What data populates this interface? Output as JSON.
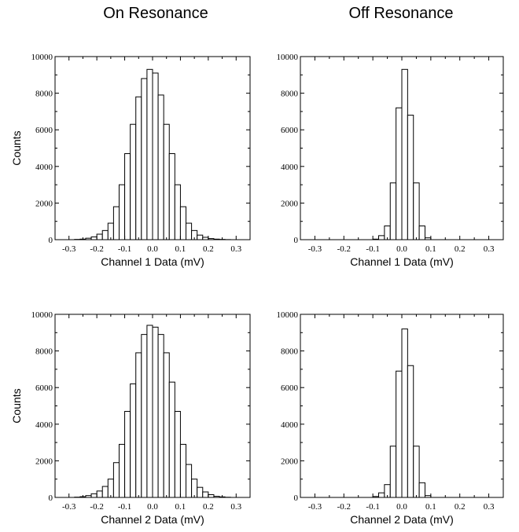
{
  "column_titles": [
    "On Resonance",
    "Off Resonance"
  ],
  "chart_data": [
    {
      "type": "bar",
      "column": "On Resonance",
      "xlabel": "Channel 1 Data (mV)",
      "ylabel": "Counts",
      "xlim": [
        -0.35,
        0.35
      ],
      "ylim": [
        0,
        10000
      ],
      "xticks": [
        -0.3,
        -0.2,
        -0.1,
        0,
        0.1,
        0.2,
        0.3
      ],
      "xtick_labels": [
        "-0.3",
        "-0.2",
        "-0.1",
        "0.0",
        "0.1",
        "0.2",
        "0.3"
      ],
      "yticks": [
        0,
        2000,
        4000,
        6000,
        8000,
        10000
      ],
      "ytick_labels": [
        "0",
        "2000",
        "4000",
        "6000",
        "8000",
        "10000"
      ],
      "bin_width": 0.02,
      "bin_centers": [
        -0.27,
        -0.25,
        -0.23,
        -0.21,
        -0.19,
        -0.17,
        -0.15,
        -0.13,
        -0.11,
        -0.09,
        -0.07,
        -0.05,
        -0.03,
        -0.01,
        0.01,
        0.03,
        0.05,
        0.07,
        0.09,
        0.11,
        0.13,
        0.15,
        0.17,
        0.19,
        0.21,
        0.23,
        0.25,
        0.27
      ],
      "values": [
        15,
        30,
        80,
        150,
        300,
        500,
        900,
        1800,
        3000,
        4700,
        6300,
        7800,
        8800,
        9300,
        9100,
        7900,
        6300,
        4700,
        3000,
        1800,
        900,
        500,
        250,
        130,
        60,
        30,
        15,
        5
      ]
    },
    {
      "type": "bar",
      "column": "Off Resonance",
      "xlabel": "Channel 1 Data (mV)",
      "ylabel": "",
      "xlim": [
        -0.35,
        0.35
      ],
      "ylim": [
        0,
        10000
      ],
      "xticks": [
        -0.3,
        -0.2,
        -0.1,
        0,
        0.1,
        0.2,
        0.3
      ],
      "xtick_labels": [
        "-0.3",
        "-0.2",
        "-0.1",
        "0.0",
        "0.1",
        "0.2",
        "0.3"
      ],
      "yticks": [
        0,
        2000,
        4000,
        6000,
        8000,
        10000
      ],
      "ytick_labels": [
        "0",
        "2000",
        "4000",
        "6000",
        "8000",
        "10000"
      ],
      "bin_width": 0.02,
      "bin_centers": [
        -0.09,
        -0.07,
        -0.05,
        -0.03,
        -0.01,
        0.01,
        0.03,
        0.05,
        0.07,
        0.09
      ],
      "values": [
        30,
        220,
        750,
        3100,
        7200,
        9300,
        6800,
        3100,
        750,
        100
      ]
    },
    {
      "type": "bar",
      "column": "On Resonance",
      "xlabel": "Channel 2 Data (mV)",
      "ylabel": "Counts",
      "xlim": [
        -0.35,
        0.35
      ],
      "ylim": [
        0,
        10000
      ],
      "xticks": [
        -0.3,
        -0.2,
        -0.1,
        0,
        0.1,
        0.2,
        0.3
      ],
      "xtick_labels": [
        "-0.3",
        "-0.2",
        "-0.1",
        "0.0",
        "0.1",
        "0.2",
        "0.3"
      ],
      "yticks": [
        0,
        2000,
        4000,
        6000,
        8000,
        10000
      ],
      "ytick_labels": [
        "0",
        "2000",
        "4000",
        "6000",
        "8000",
        "10000"
      ],
      "bin_width": 0.02,
      "bin_centers": [
        -0.27,
        -0.25,
        -0.23,
        -0.21,
        -0.19,
        -0.17,
        -0.15,
        -0.13,
        -0.11,
        -0.09,
        -0.07,
        -0.05,
        -0.03,
        -0.01,
        0.01,
        0.03,
        0.05,
        0.07,
        0.09,
        0.11,
        0.13,
        0.15,
        0.17,
        0.19,
        0.21,
        0.23,
        0.25,
        0.27
      ],
      "values": [
        15,
        40,
        100,
        200,
        350,
        600,
        1000,
        1900,
        2900,
        4700,
        6200,
        7900,
        8900,
        9400,
        9300,
        8900,
        7900,
        6300,
        4700,
        2900,
        1800,
        1000,
        550,
        300,
        150,
        60,
        30,
        10
      ]
    },
    {
      "type": "bar",
      "column": "Off Resonance",
      "xlabel": "Channel 2 Data (mV)",
      "ylabel": "",
      "xlim": [
        -0.35,
        0.35
      ],
      "ylim": [
        0,
        10000
      ],
      "xticks": [
        -0.3,
        -0.2,
        -0.1,
        0,
        0.1,
        0.2,
        0.3
      ],
      "xtick_labels": [
        "-0.3",
        "-0.2",
        "-0.1",
        "0.0",
        "0.1",
        "0.2",
        "0.3"
      ],
      "yticks": [
        0,
        2000,
        4000,
        6000,
        8000,
        10000
      ],
      "ytick_labels": [
        "0",
        "2000",
        "4000",
        "6000",
        "8000",
        "10000"
      ],
      "bin_width": 0.02,
      "bin_centers": [
        -0.09,
        -0.07,
        -0.05,
        -0.03,
        -0.01,
        0.01,
        0.03,
        0.05,
        0.07,
        0.09
      ],
      "values": [
        50,
        250,
        700,
        2800,
        6900,
        9200,
        7200,
        2800,
        800,
        100
      ]
    }
  ]
}
